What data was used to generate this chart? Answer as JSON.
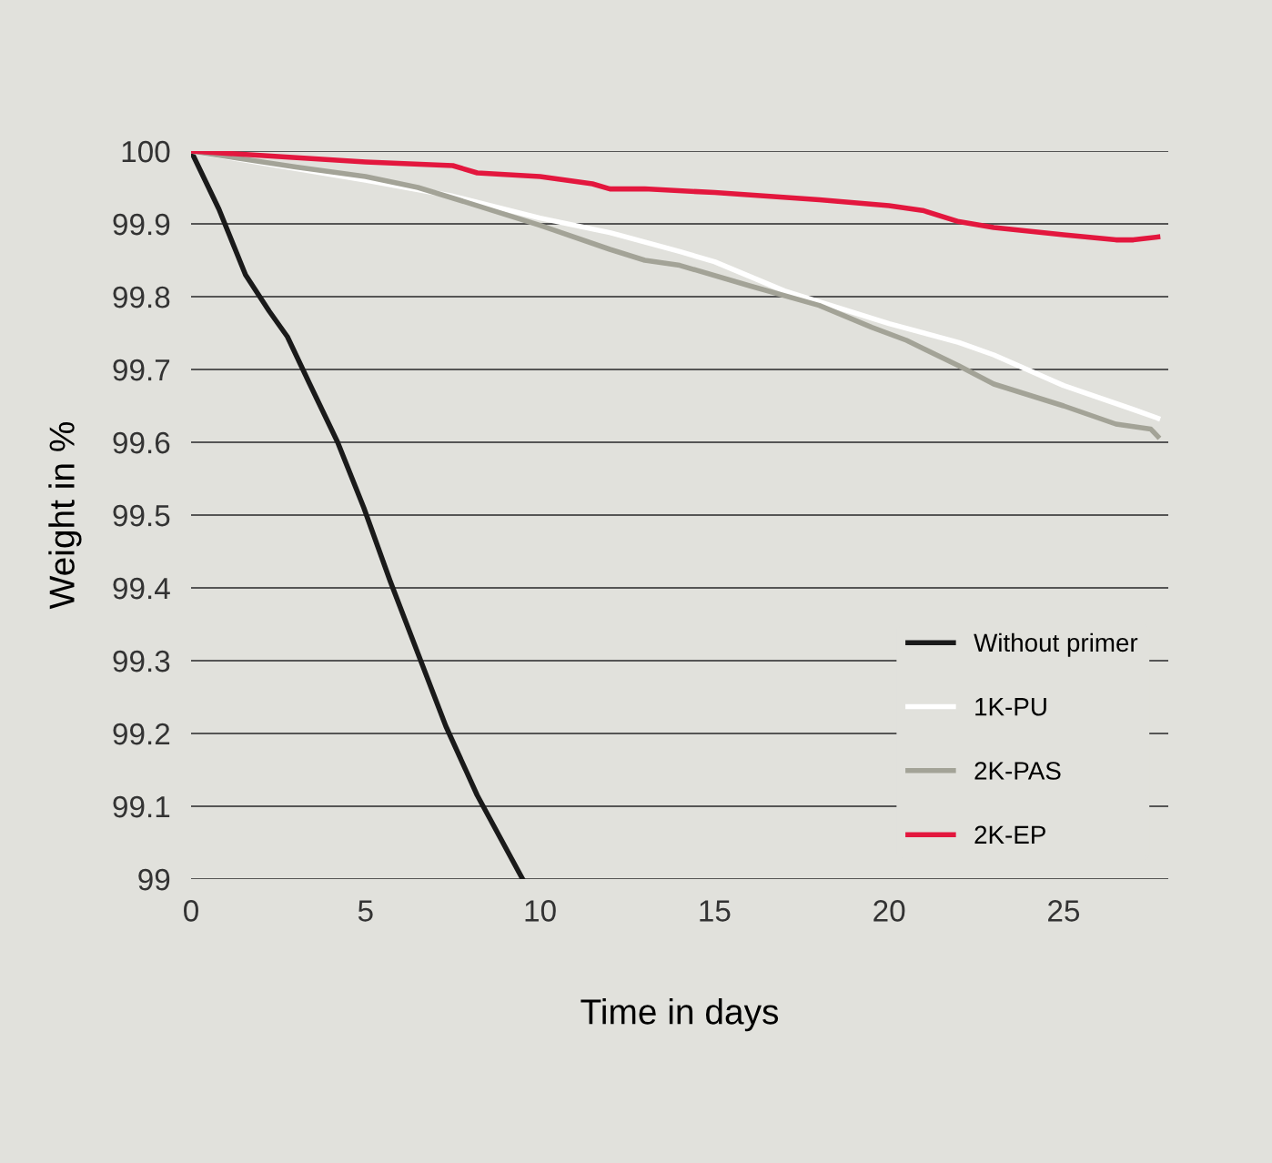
{
  "chart_data": {
    "type": "line",
    "xlabel": "Time in days",
    "ylabel": "Weight in %",
    "xlim": [
      0,
      28
    ],
    "xticks": [
      0,
      5,
      10,
      15,
      20,
      25
    ],
    "ylim": [
      99,
      100
    ],
    "yticks": [
      99,
      99.1,
      99.2,
      99.3,
      99.4,
      99.5,
      99.6,
      99.7,
      99.8,
      99.9,
      100
    ],
    "grid": "y",
    "legend": "bottom right",
    "marker": "none",
    "line_style": "solid",
    "series": [
      {
        "name": "Without primer",
        "color": "#1a1a1a",
        "x": [
          0,
          0.8,
          1.56,
          2.24,
          2.76,
          3.4,
          4.2,
          4.95,
          5.7,
          6.5,
          7.3,
          8.2,
          9.5
        ],
        "values": [
          100,
          99.92,
          99.83,
          99.78,
          99.745,
          99.68,
          99.6,
          99.51,
          99.41,
          99.31,
          99.21,
          99.115,
          99.0
        ]
      },
      {
        "name": "1K-PU",
        "color": "#ffffff",
        "x": [
          0,
          5,
          7.5,
          10,
          12,
          14,
          15,
          17,
          20,
          22,
          23,
          25,
          27,
          27.7
        ],
        "values": [
          100,
          99.96,
          99.938,
          99.908,
          99.888,
          99.862,
          99.848,
          99.808,
          99.763,
          99.737,
          99.72,
          99.678,
          99.645,
          99.633
        ]
      },
      {
        "name": "2K-PAS",
        "color": "#a3a397",
        "x": [
          0,
          3,
          5,
          6.5,
          8,
          10,
          12,
          13,
          14,
          16,
          18,
          19.5,
          20.5,
          22,
          23,
          25,
          26.5,
          27.5,
          27.7
        ],
        "values": [
          100,
          99.978,
          99.965,
          99.95,
          99.928,
          99.898,
          99.865,
          99.85,
          99.843,
          99.815,
          99.788,
          99.758,
          99.74,
          99.705,
          99.68,
          99.65,
          99.625,
          99.618,
          99.608
        ]
      },
      {
        "name": "2K-EP",
        "color": "#e3173e",
        "x": [
          0,
          5,
          7.5,
          8.2,
          10,
          11.5,
          12,
          13,
          15,
          18,
          20,
          21,
          22,
          23,
          25,
          26.5,
          27,
          27.7
        ],
        "values": [
          100,
          99.985,
          99.98,
          99.97,
          99.965,
          99.955,
          99.948,
          99.948,
          99.943,
          99.933,
          99.925,
          99.918,
          99.903,
          99.895,
          99.885,
          99.878,
          99.878,
          99.882
        ]
      }
    ]
  }
}
